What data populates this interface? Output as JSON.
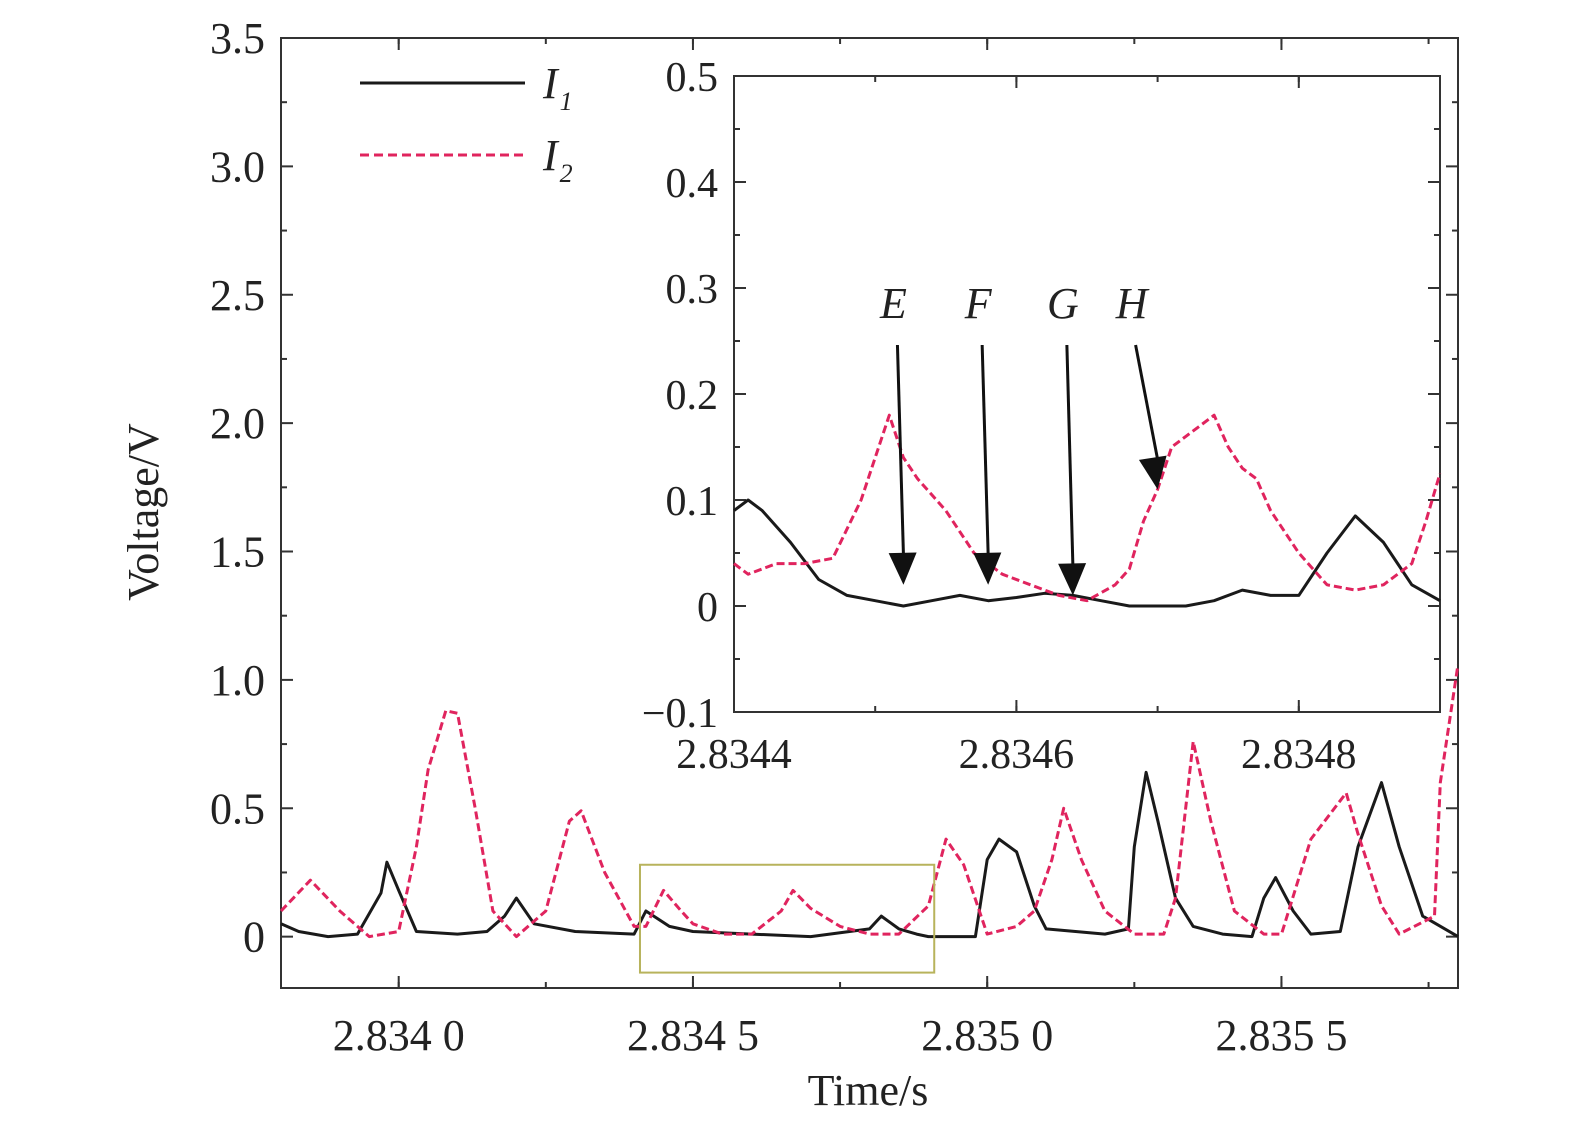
{
  "chart_data": [
    {
      "type": "line",
      "xlabel": "Time/s",
      "ylabel": "Voltage/V",
      "xlim": [
        2.8338,
        2.8358
      ],
      "ylim": [
        -0.2,
        3.5
      ],
      "x_ticks": [
        2.834,
        2.8345,
        2.835,
        2.8355
      ],
      "x_tick_labels": [
        "2.834 0",
        "2.834 5",
        "2.835 0",
        "2.835 5"
      ],
      "y_ticks": [
        0,
        0.5,
        1.0,
        1.5,
        2.0,
        2.5,
        3.0,
        3.5
      ],
      "y_tick_labels": [
        "0",
        "0.5",
        "1.0",
        "1.5",
        "2.0",
        "2.5",
        "3.0",
        "3.5"
      ],
      "legend": {
        "placement": "top-left",
        "entries": [
          {
            "label": "I",
            "sub": "1"
          },
          {
            "label": "I",
            "sub": "2"
          }
        ]
      },
      "series": [
        {
          "name": "I1",
          "color": "#1a1a1a",
          "dash": false,
          "points": [
            [
              2.8338,
              0.05
            ],
            [
              2.83383,
              0.02
            ],
            [
              2.83388,
              0.0
            ],
            [
              2.83393,
              0.01
            ],
            [
              2.83397,
              0.17
            ],
            [
              2.83398,
              0.29
            ],
            [
              2.834,
              0.18
            ],
            [
              2.83403,
              0.02
            ],
            [
              2.8341,
              0.01
            ],
            [
              2.83415,
              0.02
            ],
            [
              2.83418,
              0.08
            ],
            [
              2.8342,
              0.15
            ],
            [
              2.83423,
              0.05
            ],
            [
              2.8343,
              0.02
            ],
            [
              2.8344,
              0.01
            ],
            [
              2.83442,
              0.1
            ],
            [
              2.83446,
              0.04
            ],
            [
              2.8345,
              0.02
            ],
            [
              2.8346,
              0.01
            ],
            [
              2.8347,
              0.0
            ],
            [
              2.8348,
              0.03
            ],
            [
              2.83482,
              0.08
            ],
            [
              2.83485,
              0.03
            ],
            [
              2.83488,
              0.01
            ],
            [
              2.8349,
              0.0
            ],
            [
              2.83498,
              0.0
            ],
            [
              2.835,
              0.3
            ],
            [
              2.83502,
              0.38
            ],
            [
              2.83505,
              0.33
            ],
            [
              2.83508,
              0.12
            ],
            [
              2.8351,
              0.03
            ],
            [
              2.8352,
              0.01
            ],
            [
              2.83524,
              0.03
            ],
            [
              2.83525,
              0.35
            ],
            [
              2.83527,
              0.64
            ],
            [
              2.83529,
              0.45
            ],
            [
              2.83532,
              0.15
            ],
            [
              2.83535,
              0.04
            ],
            [
              2.8354,
              0.01
            ],
            [
              2.83545,
              0.0
            ],
            [
              2.83547,
              0.15
            ],
            [
              2.83549,
              0.23
            ],
            [
              2.83552,
              0.1
            ],
            [
              2.83555,
              0.01
            ],
            [
              2.8356,
              0.02
            ],
            [
              2.83563,
              0.35
            ],
            [
              2.83567,
              0.6
            ],
            [
              2.8357,
              0.35
            ],
            [
              2.83574,
              0.08
            ],
            [
              2.8358,
              0.0
            ]
          ]
        },
        {
          "name": "I2",
          "color": "#e0245e",
          "dash": true,
          "points": [
            [
              2.8338,
              0.1
            ],
            [
              2.83385,
              0.22
            ],
            [
              2.8339,
              0.1
            ],
            [
              2.83395,
              0.0
            ],
            [
              2.834,
              0.02
            ],
            [
              2.83403,
              0.35
            ],
            [
              2.83405,
              0.65
            ],
            [
              2.83408,
              0.88
            ],
            [
              2.8341,
              0.87
            ],
            [
              2.83413,
              0.5
            ],
            [
              2.83416,
              0.1
            ],
            [
              2.8342,
              0.0
            ],
            [
              2.83425,
              0.1
            ],
            [
              2.83429,
              0.45
            ],
            [
              2.83431,
              0.49
            ],
            [
              2.83435,
              0.25
            ],
            [
              2.8344,
              0.04
            ],
            [
              2.83442,
              0.04
            ],
            [
              2.83445,
              0.18
            ],
            [
              2.83448,
              0.1
            ],
            [
              2.8345,
              0.05
            ],
            [
              2.83455,
              0.01
            ],
            [
              2.8346,
              0.01
            ],
            [
              2.83465,
              0.1
            ],
            [
              2.83467,
              0.18
            ],
            [
              2.8347,
              0.11
            ],
            [
              2.83475,
              0.04
            ],
            [
              2.8348,
              0.01
            ],
            [
              2.83485,
              0.01
            ],
            [
              2.8349,
              0.12
            ],
            [
              2.83493,
              0.38
            ],
            [
              2.83496,
              0.28
            ],
            [
              2.835,
              0.01
            ],
            [
              2.83505,
              0.04
            ],
            [
              2.83508,
              0.1
            ],
            [
              2.83511,
              0.3
            ],
            [
              2.83513,
              0.5
            ],
            [
              2.83516,
              0.3
            ],
            [
              2.8352,
              0.1
            ],
            [
              2.83525,
              0.01
            ],
            [
              2.8353,
              0.01
            ],
            [
              2.83532,
              0.15
            ],
            [
              2.83535,
              0.76
            ],
            [
              2.83538,
              0.45
            ],
            [
              2.83542,
              0.1
            ],
            [
              2.83547,
              0.01
            ],
            [
              2.8355,
              0.01
            ],
            [
              2.83555,
              0.38
            ],
            [
              2.83561,
              0.56
            ],
            [
              2.83563,
              0.4
            ],
            [
              2.83567,
              0.12
            ],
            [
              2.8357,
              0.01
            ],
            [
              2.83576,
              0.08
            ],
            [
              2.83577,
              0.6
            ],
            [
              2.8358,
              1.06
            ]
          ]
        }
      ],
      "highlight_box": {
        "x": [
          2.83441,
          2.83491
        ],
        "y": [
          -0.14,
          0.28
        ],
        "color": "#b8b35c"
      }
    },
    {
      "type": "line",
      "xlim": [
        2.8344,
        2.8349
      ],
      "ylim": [
        -0.1,
        0.5
      ],
      "x_ticks": [
        2.8344,
        2.8346,
        2.8348
      ],
      "x_tick_labels": [
        "2.8344",
        "2.8346",
        "2.8348"
      ],
      "y_ticks": [
        -0.1,
        0,
        0.1,
        0.2,
        0.3,
        0.4,
        0.5
      ],
      "y_tick_labels": [
        "−0.1",
        "0",
        "0.1",
        "0.2",
        "0.3",
        "0.4",
        "0.5"
      ],
      "annotations": [
        {
          "label": "E",
          "x": 2.83452,
          "y": 0.02
        },
        {
          "label": "F",
          "x": 2.83458,
          "y": 0.02
        },
        {
          "label": "G",
          "x": 2.83464,
          "y": 0.01
        },
        {
          "label": "H",
          "x": 2.8347,
          "y": 0.11
        }
      ],
      "series": [
        {
          "name": "I1",
          "color": "#1a1a1a",
          "dash": false,
          "points": [
            [
              2.8344,
              0.09
            ],
            [
              2.83441,
              0.1
            ],
            [
              2.83442,
              0.09
            ],
            [
              2.83444,
              0.06
            ],
            [
              2.83446,
              0.025
            ],
            [
              2.83448,
              0.01
            ],
            [
              2.8345,
              0.005
            ],
            [
              2.83452,
              0.0
            ],
            [
              2.83454,
              0.005
            ],
            [
              2.83456,
              0.01
            ],
            [
              2.83458,
              0.005
            ],
            [
              2.8346,
              0.008
            ],
            [
              2.83462,
              0.012
            ],
            [
              2.83464,
              0.01
            ],
            [
              2.83466,
              0.005
            ],
            [
              2.83468,
              0.0
            ],
            [
              2.8347,
              0.0
            ],
            [
              2.83472,
              0.0
            ],
            [
              2.83474,
              0.005
            ],
            [
              2.83476,
              0.015
            ],
            [
              2.83478,
              0.01
            ],
            [
              2.8348,
              0.01
            ],
            [
              2.83482,
              0.05
            ],
            [
              2.83484,
              0.085
            ],
            [
              2.83486,
              0.06
            ],
            [
              2.83488,
              0.02
            ],
            [
              2.8349,
              0.005
            ]
          ]
        },
        {
          "name": "I2",
          "color": "#e0245e",
          "dash": true,
          "points": [
            [
              2.8344,
              0.04
            ],
            [
              2.83441,
              0.03
            ],
            [
              2.83443,
              0.04
            ],
            [
              2.83445,
              0.04
            ],
            [
              2.83447,
              0.045
            ],
            [
              2.83449,
              0.1
            ],
            [
              2.83451,
              0.18
            ],
            [
              2.83452,
              0.14
            ],
            [
              2.83453,
              0.12
            ],
            [
              2.83455,
              0.09
            ],
            [
              2.83457,
              0.05
            ],
            [
              2.83459,
              0.03
            ],
            [
              2.83461,
              0.02
            ],
            [
              2.83463,
              0.01
            ],
            [
              2.83465,
              0.005
            ],
            [
              2.83467,
              0.02
            ],
            [
              2.83468,
              0.035
            ],
            [
              2.83469,
              0.08
            ],
            [
              2.8347,
              0.11
            ],
            [
              2.83471,
              0.15
            ],
            [
              2.83472,
              0.16
            ],
            [
              2.83473,
              0.17
            ],
            [
              2.83474,
              0.18
            ],
            [
              2.83475,
              0.15
            ],
            [
              2.83476,
              0.13
            ],
            [
              2.83477,
              0.12
            ],
            [
              2.83478,
              0.09
            ],
            [
              2.8348,
              0.05
            ],
            [
              2.83482,
              0.02
            ],
            [
              2.83484,
              0.015
            ],
            [
              2.83486,
              0.02
            ],
            [
              2.83488,
              0.04
            ],
            [
              2.83489,
              0.08
            ],
            [
              2.8349,
              0.125
            ]
          ]
        }
      ]
    }
  ]
}
